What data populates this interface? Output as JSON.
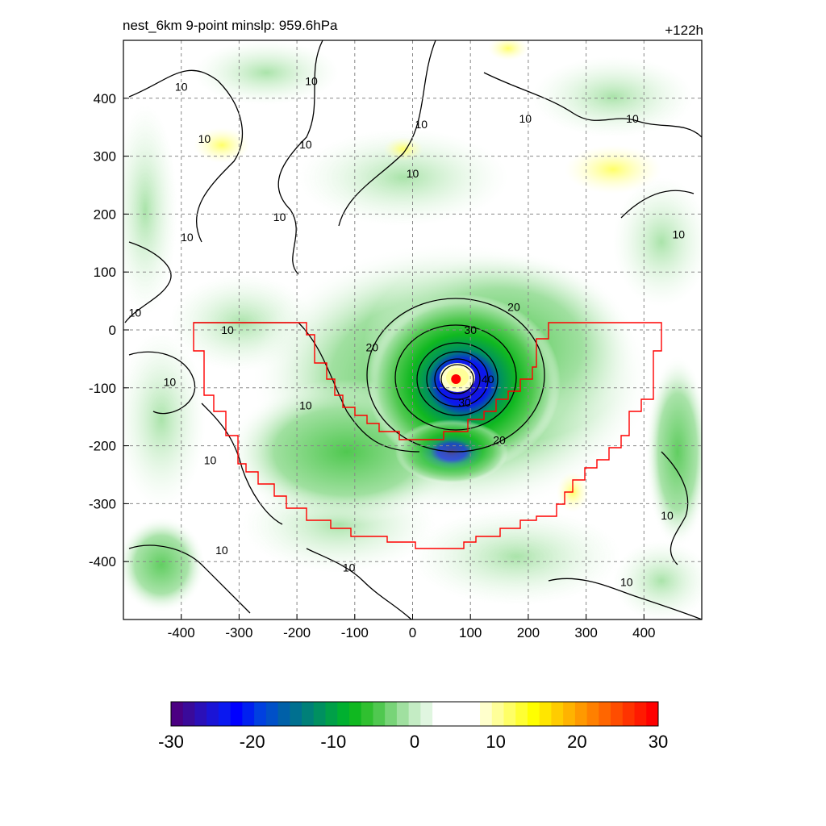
{
  "header": {
    "title": "nest_6km  9-point minslp: 959.6hPa",
    "forecast_hour": "+122h"
  },
  "chart_data": {
    "type": "heatmap",
    "title": "nest_6km  9-point minslp: 959.6hPa",
    "annotation": "+122h",
    "xlim": [
      -500,
      500
    ],
    "ylim": [
      -500,
      500
    ],
    "x_ticks": [
      -400,
      -300,
      -200,
      -100,
      0,
      100,
      200,
      300,
      400
    ],
    "y_ticks": [
      -400,
      -300,
      -200,
      -100,
      0,
      100,
      200,
      300,
      400
    ],
    "grid": true,
    "storm_center": {
      "x": 75,
      "y": -85
    },
    "contour_labels": [
      {
        "text": "10",
        "x": -400,
        "y": 420
      },
      {
        "text": "10",
        "x": -175,
        "y": 430
      },
      {
        "text": "10",
        "x": 15,
        "y": 355
      },
      {
        "text": "10",
        "x": 195,
        "y": 365
      },
      {
        "text": "10",
        "x": 380,
        "y": 365
      },
      {
        "text": "10",
        "x": -360,
        "y": 330
      },
      {
        "text": "10",
        "x": -185,
        "y": 320
      },
      {
        "text": "10",
        "x": 0,
        "y": 270
      },
      {
        "text": "10",
        "x": -230,
        "y": 195
      },
      {
        "text": "10",
        "x": -390,
        "y": 160
      },
      {
        "text": "10",
        "x": 460,
        "y": 165
      },
      {
        "text": "10",
        "x": -480,
        "y": 30
      },
      {
        "text": "10",
        "x": -320,
        "y": 0
      },
      {
        "text": "10",
        "x": -420,
        "y": -90
      },
      {
        "text": "10",
        "x": -185,
        "y": -130
      },
      {
        "text": "10",
        "x": -350,
        "y": -225
      },
      {
        "text": "10",
        "x": -330,
        "y": -380
      },
      {
        "text": "10",
        "x": -110,
        "y": -410
      },
      {
        "text": "10",
        "x": 440,
        "y": -320
      },
      {
        "text": "10",
        "x": 370,
        "y": -435
      },
      {
        "text": "20",
        "x": 175,
        "y": 40
      },
      {
        "text": "20",
        "x": -70,
        "y": -30
      },
      {
        "text": "30",
        "x": 100,
        "y": 0
      },
      {
        "text": "20",
        "x": 150,
        "y": -190
      },
      {
        "text": "40",
        "x": 130,
        "y": -85
      },
      {
        "text": "30",
        "x": 90,
        "y": -125
      }
    ],
    "colorbar": {
      "min": -30,
      "max": 30,
      "labels": [
        "-30",
        "-20",
        "-10",
        "0",
        "10",
        "20",
        "30"
      ],
      "colors": [
        "#4b0082",
        "#3a0a9a",
        "#2a10b8",
        "#1a14d6",
        "#0a18f0",
        "#0000ff",
        "#0020f0",
        "#0040e0",
        "#0050c8",
        "#0060a8",
        "#007090",
        "#008078",
        "#009060",
        "#00a048",
        "#00b030",
        "#10b820",
        "#30c030",
        "#50c850",
        "#78d478",
        "#a0e0a0",
        "#c4ecc4",
        "#e0f6e0",
        "#ffffff",
        "#ffffff",
        "#ffffff",
        "#ffffff",
        "#ffffcc",
        "#ffff99",
        "#ffff66",
        "#ffff33",
        "#ffff00",
        "#ffe600",
        "#ffcc00",
        "#ffb300",
        "#ff9900",
        "#ff8000",
        "#ff6600",
        "#ff4d00",
        "#ff3300",
        "#ff1a00",
        "#ff0000"
      ]
    }
  }
}
